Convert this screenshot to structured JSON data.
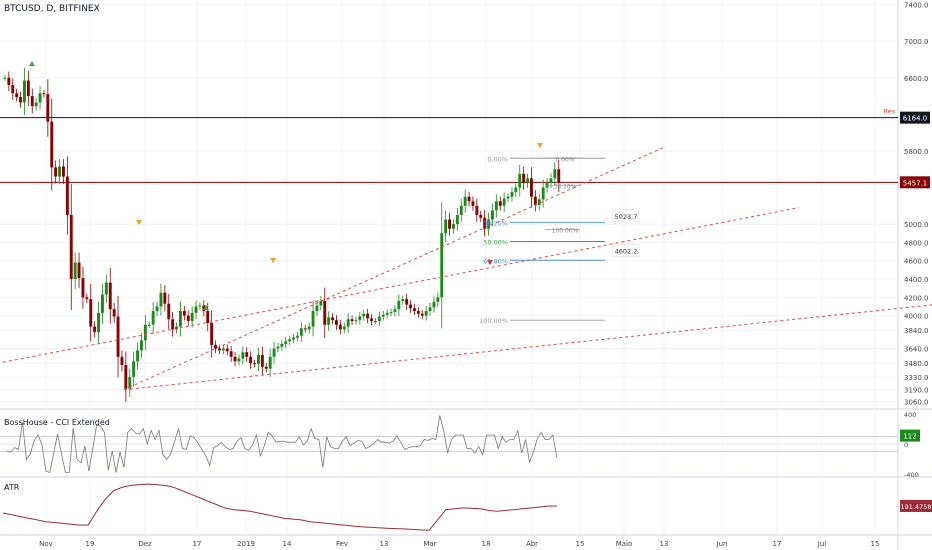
{
  "header": {
    "symbol_label": "BTCUSD, D, BITFINEX"
  },
  "panes": {
    "cci_title": "BossHouse - CCI Extended",
    "atr_title": "ATR"
  },
  "colors": {
    "up": "#1b8a1b",
    "down": "#8b0000",
    "trend": "#e34a4a",
    "atr": "#9c2b3a",
    "cci": "#777777",
    "fib_blue": "#4a8ee0",
    "fib_green": "#3aa53a",
    "fib_gray": "#999999"
  },
  "chart_data": {
    "type": "candlestick",
    "symbol": "BTCUSD, D, BITFINEX",
    "yticks": [
      7400.0,
      7000.0,
      6600.0,
      5800.0,
      5000.0,
      4800.0,
      4600.0,
      4400.0,
      4200.0,
      4000.0,
      3840.0,
      3640.0,
      3480.0,
      3330.0,
      3190.0,
      3060.0
    ],
    "xticks": [
      "Nov",
      "19",
      "Dez",
      "17",
      "2019",
      "14",
      "Fev",
      "13",
      "Mar",
      "18",
      "Abr",
      "15",
      "Maio",
      "13",
      "Jun",
      "17",
      "Jul",
      "15"
    ],
    "price_labels": [
      {
        "label": "Res",
        "value": "6164.0",
        "price": 6164,
        "color": "#131722"
      },
      {
        "label": "",
        "value": "5457.1",
        "price": 5457,
        "color": "#8b0000"
      }
    ],
    "horizontal_lines": [
      {
        "price": 6164,
        "color": "#131722"
      },
      {
        "price": 5457,
        "color": "#8b0000"
      }
    ],
    "annotations": [
      {
        "text": "5023.7",
        "price": 5080
      },
      {
        "text": "4602.2",
        "price": 4700
      }
    ],
    "fib_retracement": {
      "levels": [
        {
          "label": "0.00%",
          "price": 5720,
          "color": "#999999"
        },
        {
          "label": "38.20%",
          "price": 5020,
          "color": "#4a8ee0"
        },
        {
          "label": "50.00%",
          "price": 4810,
          "color": "#3aa53a"
        },
        {
          "label": "61.80%",
          "price": 4605,
          "color": "#4a8ee0"
        },
        {
          "label": "100.00%",
          "price": 3950,
          "color": "#999999"
        }
      ],
      "inner_levels": [
        {
          "label": "0.00%",
          "price": 5720
        },
        {
          "label": "38.20%",
          "price": 5420
        },
        {
          "label": "100.00%",
          "price": 4940
        }
      ]
    },
    "trendlines": [
      {
        "from": {
          "bar": 31,
          "price": 3190
        },
        "to": {
          "bar": 170,
          "price": 5850
        }
      },
      {
        "from": {
          "bar": 0,
          "price": 3490
        },
        "to": {
          "bar": 204,
          "price": 5180
        }
      },
      {
        "from": {
          "bar": 31,
          "price": 3190
        },
        "to": {
          "bar": 250,
          "price": 4170
        }
      }
    ],
    "price_series": [
      6600,
      6520,
      6430,
      6390,
      6330,
      6570,
      6400,
      6290,
      6330,
      6430,
      6420,
      6120,
      5620,
      5520,
      5630,
      5520,
      5100,
      4400,
      4580,
      4410,
      4200,
      4180,
      3880,
      3820,
      4030,
      4230,
      4360,
      4070,
      3990,
      3550,
      3460,
      3200,
      3330,
      3500,
      3620,
      3730,
      3900,
      3900,
      4050,
      4100,
      4250,
      4130,
      3960,
      3850,
      3880,
      4050,
      4000,
      3940,
      4030,
      4100,
      4110,
      4050,
      3920,
      3680,
      3640,
      3620,
      3640,
      3610,
      3550,
      3500,
      3530,
      3600,
      3550,
      3480,
      3470,
      3570,
      3440,
      3420,
      3550,
      3640,
      3660,
      3690,
      3720,
      3740,
      3760,
      3780,
      3860,
      3850,
      3880,
      4050,
      4110,
      4160,
      3900,
      3980,
      3950,
      3900,
      3850,
      3880,
      3960,
      3940,
      3950,
      3990,
      4020,
      3970,
      3940,
      3940,
      3990,
      4010,
      4030,
      4040,
      4070,
      4160,
      4180,
      4120,
      4080,
      4050,
      4020,
      4000,
      4050,
      4090,
      4150,
      4200,
      4900,
      5050,
      4950,
      5000,
      5100,
      5200,
      5300,
      5250,
      5200,
      5100,
      5070,
      4950,
      5050,
      5150,
      5250,
      5200,
      5280,
      5300,
      5350,
      5400,
      5550,
      5450,
      5500,
      5300,
      5210,
      5270,
      5400,
      5450,
      5500,
      5600,
      5450
    ],
    "ylim": [
      2990,
      7450
    ],
    "xlabel": "",
    "ylabel": "",
    "cci": {
      "yticks": [
        400,
        0,
        -400
      ],
      "last_value": "112",
      "upper_band": 100,
      "lower_band": -100
    },
    "atr": {
      "last_value": "191.4758",
      "series": [
        150,
        140,
        130,
        120,
        110,
        100,
        95,
        90,
        85,
        80,
        80,
        160,
        230,
        280,
        300,
        310,
        315,
        318,
        315,
        310,
        300,
        280,
        260,
        240,
        220,
        200,
        180,
        170,
        165,
        160,
        150,
        140,
        130,
        120,
        115,
        110,
        100,
        95,
        90,
        85,
        80,
        75,
        70,
        68,
        65,
        62,
        60,
        58,
        55,
        52,
        50,
        110,
        170,
        175,
        180,
        178,
        175,
        165,
        160,
        165,
        170,
        175,
        180,
        185,
        190,
        191
      ]
    }
  }
}
